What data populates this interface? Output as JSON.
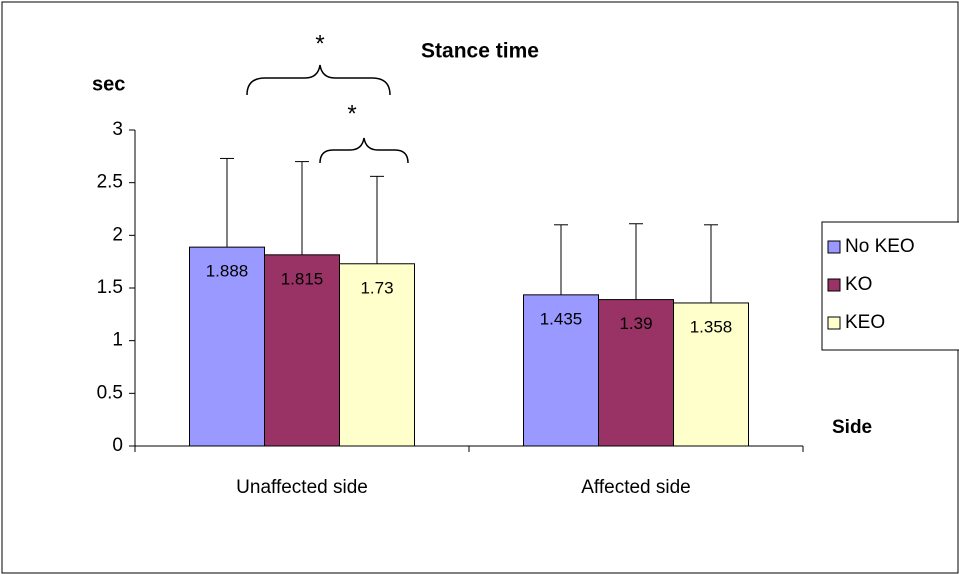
{
  "chart_data": {
    "type": "bar",
    "title": "Stance time",
    "y_label": "sec",
    "x_label": "Side",
    "categories": [
      "Unaffected side",
      "Affected side"
    ],
    "series": [
      {
        "name": "No KEO",
        "color": "#9999ff",
        "values": [
          1.888,
          1.435
        ],
        "errors": [
          0.842,
          0.665
        ]
      },
      {
        "name": "KO",
        "color": "#993366",
        "values": [
          1.815,
          1.39
        ],
        "errors": [
          0.885,
          0.72
        ]
      },
      {
        "name": "KEO",
        "color": "#ffffcc",
        "values": [
          1.73,
          1.358
        ],
        "errors": [
          0.83,
          0.742
        ]
      }
    ],
    "ylim": [
      0,
      3
    ],
    "yticks": [
      0,
      0.5,
      1,
      1.5,
      2,
      2.5,
      3
    ],
    "grid": false,
    "legend": "right",
    "annotations": [
      "*",
      "*"
    ]
  }
}
